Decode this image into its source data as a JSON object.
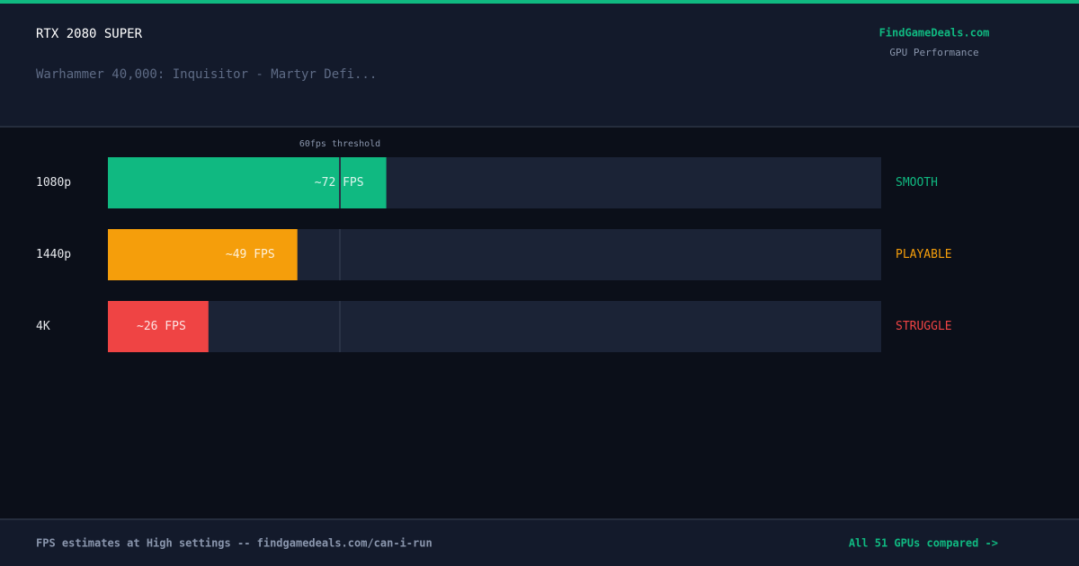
{
  "header": {
    "title": "RTX 2080 SUPER",
    "subtitle": "Warhammer 40,000: Inquisitor - Martyr Defi...",
    "brand": "FindGameDeals.com",
    "brand_subtitle": "GPU Performance"
  },
  "chart_data": {
    "type": "hbar",
    "categories": [
      "1080p",
      "1440p",
      "4K"
    ],
    "values": [
      72,
      49,
      26
    ],
    "value_labels": [
      "~72 FPS",
      "~49 FPS",
      "~26 FPS"
    ],
    "colors": [
      "#10b981",
      "#f59e0b",
      "#ef4444"
    ],
    "status_labels": [
      "SMOOTH",
      "PLAYABLE",
      "STRUGGLE"
    ],
    "xlim": [
      0,
      200
    ],
    "threshold": {
      "value": 60,
      "label": "60fps threshold"
    }
  },
  "footer": {
    "note": "FPS estimates at High settings -- findgamedeals.com/can-i-run",
    "link": "All 51 GPUs compared ->"
  }
}
